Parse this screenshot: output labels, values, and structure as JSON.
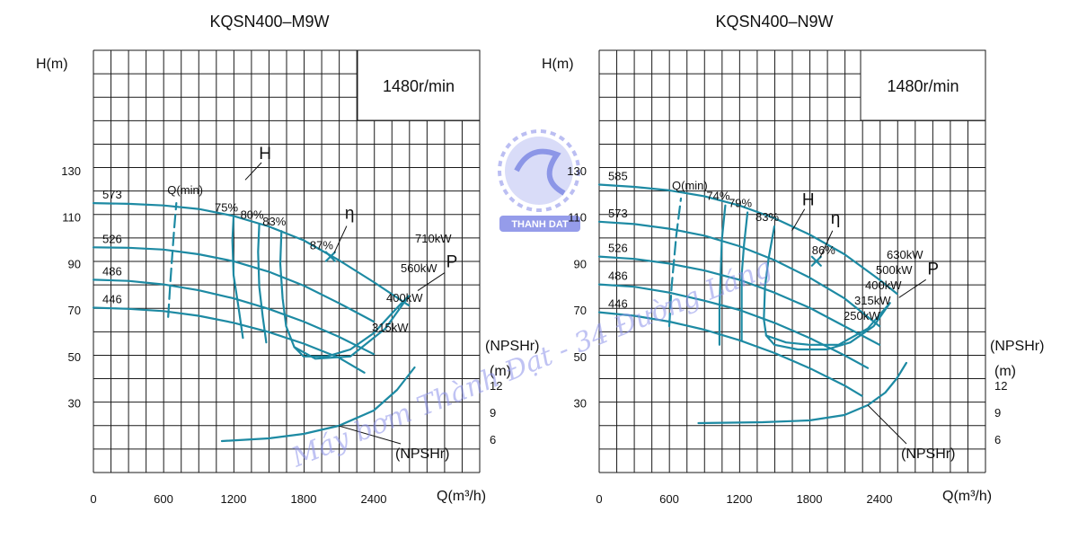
{
  "colors": {
    "curve": "#1d8aa3",
    "grid": "#1a1a1a",
    "logo": "#6b78e0",
    "watermark": "#8d93ea"
  },
  "watermark": {
    "text": "Máy bơm Thành Đạt - 34 Đường Láng",
    "logo_text": "THANH DAT"
  },
  "chart_data": [
    {
      "type": "line",
      "title": "KQSN400–M9W",
      "speed_label": "1480r/min",
      "xlabel": "Q(m³/h)",
      "ylabel": "H(m)",
      "npsh_axis": {
        "label": "(NPSHr)",
        "unit": "(m)",
        "ticks": [
          12,
          9,
          6
        ]
      },
      "xlim": [
        0,
        3300
      ],
      "ylim": [
        0,
        145
      ],
      "x_ticks": [
        0,
        600,
        1200,
        1800,
        2400
      ],
      "y_ticks": [
        30,
        50,
        70,
        90,
        110,
        130
      ],
      "impeller_diameters": [
        573,
        526,
        486,
        446
      ],
      "grid": true,
      "head_curves": [
        {
          "name": "573",
          "points": [
            [
              0,
              116
            ],
            [
              300,
              115.7
            ],
            [
              600,
              115
            ],
            [
              900,
              113.5
            ],
            [
              1200,
              110.5
            ],
            [
              1500,
              106
            ],
            [
              1800,
              100
            ],
            [
              2100,
              91.5
            ],
            [
              2400,
              82
            ],
            [
              2700,
              72
            ]
          ]
        },
        {
          "name": "526",
          "points": [
            [
              0,
              97
            ],
            [
              300,
              96.8
            ],
            [
              600,
              96
            ],
            [
              900,
              94
            ],
            [
              1200,
              91
            ],
            [
              1500,
              86.5
            ],
            [
              1800,
              80.5
            ],
            [
              2100,
              73
            ],
            [
              2400,
              65
            ]
          ]
        },
        {
          "name": "486",
          "points": [
            [
              0,
              83
            ],
            [
              300,
              82.5
            ],
            [
              600,
              81
            ],
            [
              900,
              78.5
            ],
            [
              1200,
              75
            ],
            [
              1500,
              70.5
            ],
            [
              1800,
              65
            ],
            [
              2100,
              58.5
            ],
            [
              2400,
              51
            ]
          ]
        },
        {
          "name": "446",
          "points": [
            [
              0,
              71
            ],
            [
              300,
              70.5
            ],
            [
              600,
              69.5
            ],
            [
              900,
              67.5
            ],
            [
              1200,
              64.5
            ],
            [
              1500,
              60.5
            ],
            [
              1800,
              55.5
            ],
            [
              2100,
              49.5
            ],
            [
              2320,
              43
            ]
          ]
        }
      ],
      "min_flow_line": {
        "label": "Q(min)",
        "points": [
          [
            640,
            67
          ],
          [
            660,
            83
          ],
          [
            690,
            104
          ],
          [
            710,
            116
          ]
        ]
      },
      "efficiency_curves": [
        {
          "label": "75%",
          "points": [
            [
              1200,
              110
            ],
            [
              1190,
              100
            ],
            [
              1200,
              85
            ],
            [
              1240,
              72
            ],
            [
              1280,
              58
            ]
          ]
        },
        {
          "label": "80%",
          "points": [
            [
              1420,
              107
            ],
            [
              1410,
              95
            ],
            [
              1420,
              80
            ],
            [
              1450,
              67
            ],
            [
              1480,
              56
            ]
          ]
        },
        {
          "label": "83%",
          "points": [
            [
              1610,
              104
            ],
            [
              1600,
              90
            ],
            [
              1620,
              75
            ],
            [
              1650,
              63
            ],
            [
              1720,
              54
            ]
          ]
        }
      ],
      "efficiency_loop": {
        "label": "P",
        "points": [
          [
            1720,
            54
          ],
          [
            1800,
            50
          ],
          [
            2000,
            50
          ],
          [
            2200,
            53
          ],
          [
            2400,
            60
          ],
          [
            2620,
            72
          ],
          [
            2700,
            76
          ],
          [
            2500,
            62
          ],
          [
            2200,
            50
          ],
          [
            1900,
            49
          ],
          [
            1720,
            54
          ]
        ]
      },
      "best_efficiency": {
        "label": "87%",
        "eta_label": "η",
        "q": 2030,
        "h": 93
      },
      "power_labels": [
        "710kW",
        "560kW",
        "400kW",
        "315kW"
      ],
      "h_label": "H",
      "npsh_curve": {
        "label": "(NPSHr)",
        "points": [
          [
            1100,
            5.8
          ],
          [
            1500,
            6.1
          ],
          [
            1800,
            6.6
          ],
          [
            2100,
            7.5
          ],
          [
            2400,
            9.2
          ],
          [
            2600,
            11.5
          ],
          [
            2750,
            14
          ]
        ]
      }
    },
    {
      "type": "line",
      "title": "KQSN400–N9W",
      "speed_label": "1480r/min",
      "xlabel": "Q(m³/h)",
      "ylabel": "H(m)",
      "npsh_axis": {
        "label": "(NPSHr)",
        "unit": "(m)",
        "ticks": [
          12,
          9,
          6
        ]
      },
      "xlim": [
        0,
        3300
      ],
      "ylim": [
        0,
        145
      ],
      "x_ticks": [
        0,
        600,
        1200,
        1800,
        2400
      ],
      "y_ticks": [
        30,
        50,
        70,
        90,
        110,
        130
      ],
      "impeller_diameters": [
        585,
        573,
        526,
        486,
        446
      ],
      "grid": true,
      "head_curves": [
        {
          "name": "585",
          "points": [
            [
              0,
              124
            ],
            [
              300,
              123
            ],
            [
              600,
              121.5
            ],
            [
              900,
              119
            ],
            [
              1200,
              115
            ],
            [
              1500,
              109.5
            ],
            [
              1800,
              102.5
            ],
            [
              2100,
              94
            ],
            [
              2400,
              83
            ],
            [
              2550,
              77
            ]
          ]
        },
        {
          "name": "573",
          "points": [
            [
              0,
              108
            ],
            [
              300,
              107
            ],
            [
              600,
              105
            ],
            [
              900,
              102
            ],
            [
              1200,
              97.5
            ],
            [
              1500,
              91.5
            ],
            [
              1800,
              84
            ],
            [
              2100,
              75
            ],
            [
              2400,
              63
            ]
          ]
        },
        {
          "name": "526",
          "points": [
            [
              0,
              93
            ],
            [
              300,
              92
            ],
            [
              600,
              90
            ],
            [
              900,
              87
            ],
            [
              1200,
              83
            ],
            [
              1500,
              77.5
            ],
            [
              1800,
              71
            ],
            [
              2100,
              63
            ],
            [
              2400,
              55
            ]
          ]
        },
        {
          "name": "486",
          "points": [
            [
              0,
              81
            ],
            [
              300,
              80
            ],
            [
              600,
              77.5
            ],
            [
              900,
              74
            ],
            [
              1200,
              70
            ],
            [
              1500,
              64.5
            ],
            [
              1800,
              58
            ],
            [
              2100,
              50.5
            ],
            [
              2300,
              45
            ]
          ]
        },
        {
          "name": "446",
          "points": [
            [
              0,
              69
            ],
            [
              300,
              67.5
            ],
            [
              600,
              65
            ],
            [
              900,
              61.5
            ],
            [
              1200,
              57
            ],
            [
              1500,
              51.5
            ],
            [
              1800,
              45
            ],
            [
              2100,
              37.5
            ],
            [
              2250,
              33
            ]
          ]
        }
      ],
      "min_flow_line": {
        "label": "Q(min)",
        "points": [
          [
            600,
            63
          ],
          [
            620,
            80
          ],
          [
            660,
            102
          ],
          [
            700,
            118
          ]
        ]
      },
      "efficiency_curves": [
        {
          "label": "74%",
          "points": [
            [
              1080,
              115
            ],
            [
              1050,
              100
            ],
            [
              1040,
              85
            ],
            [
              1030,
              70
            ],
            [
              1030,
              55
            ]
          ]
        },
        {
          "label": "79%",
          "points": [
            [
              1270,
              112
            ],
            [
              1240,
              98
            ],
            [
              1220,
              85
            ],
            [
              1220,
              70
            ],
            [
              1220,
              57
            ]
          ]
        },
        {
          "label": "83%",
          "points": [
            [
              1500,
              106
            ],
            [
              1450,
              92
            ],
            [
              1420,
              80
            ],
            [
              1410,
              66
            ],
            [
              1430,
              59
            ]
          ]
        }
      ],
      "efficiency_loop": {
        "label": "P",
        "points": [
          [
            1430,
            59
          ],
          [
            1500,
            55
          ],
          [
            1700,
            53
          ],
          [
            1950,
            53
          ],
          [
            2150,
            56
          ],
          [
            2350,
            63
          ],
          [
            2490,
            73
          ],
          [
            2300,
            62
          ],
          [
            2050,
            55
          ],
          [
            1800,
            55
          ],
          [
            1600,
            56
          ],
          [
            1430,
            59
          ]
        ]
      },
      "best_efficiency": {
        "label": "86%",
        "eta_label": "η",
        "q": 1860,
        "h": 91
      },
      "power_labels": [
        "630kW",
        "500kW",
        "400kW",
        "315kW",
        "250kW"
      ],
      "h_label": "H",
      "npsh_curve": {
        "label": "(NPSHr)",
        "points": [
          [
            850,
            7.8
          ],
          [
            1400,
            7.9
          ],
          [
            1800,
            8.1
          ],
          [
            2100,
            8.7
          ],
          [
            2300,
            9.8
          ],
          [
            2450,
            11.2
          ],
          [
            2550,
            12.8
          ],
          [
            2630,
            14.5
          ]
        ]
      }
    }
  ]
}
